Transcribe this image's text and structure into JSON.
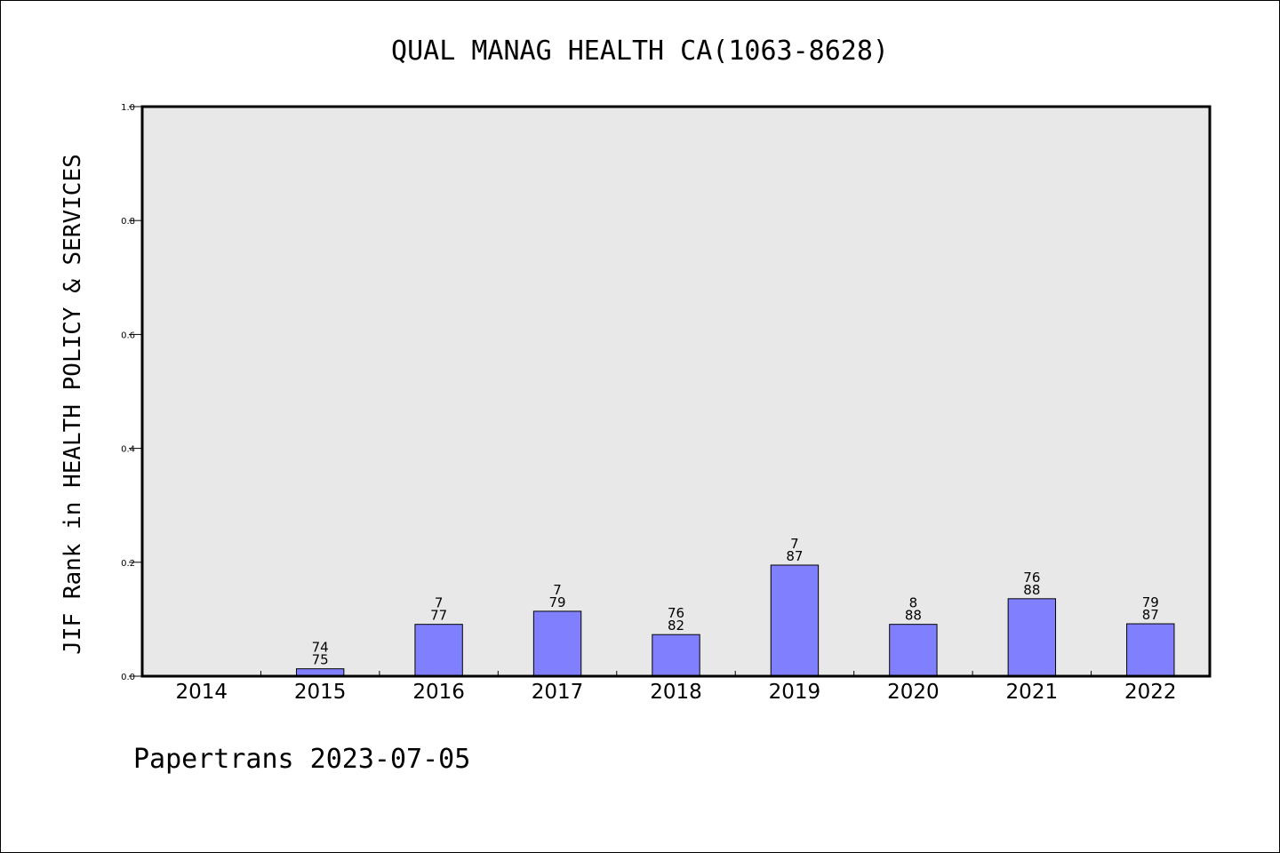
{
  "chart_data": {
    "type": "bar",
    "title": "QUAL MANAG HEALTH CA(1063-8628)",
    "xlabel": "",
    "ylabel": "JIF Rank in HEALTH POLICY & SERVICES",
    "ylim": [
      0,
      1.0
    ],
    "yticks": [
      "0.0",
      "0.2",
      "0.4",
      "0.6",
      "0.8",
      "1.0"
    ],
    "categories": [
      "2014",
      "2015",
      "2016",
      "2017",
      "2018",
      "2019",
      "2020",
      "2021",
      "2022"
    ],
    "values": [
      null,
      0.013,
      0.091,
      0.114,
      0.073,
      0.195,
      0.091,
      0.136,
      0.092
    ],
    "rank_labels": [
      "",
      "74",
      "7",
      "7",
      "76",
      "7",
      "8",
      "76",
      "79"
    ],
    "total_labels": [
      "",
      "75",
      "77",
      "79",
      "82",
      "87",
      "88",
      "88",
      "87"
    ],
    "bar_color": "#8080ff",
    "plot_background": "#e8e8e8",
    "grid": false,
    "legend": "none"
  },
  "footer": "Papertrans 2023-07-05"
}
